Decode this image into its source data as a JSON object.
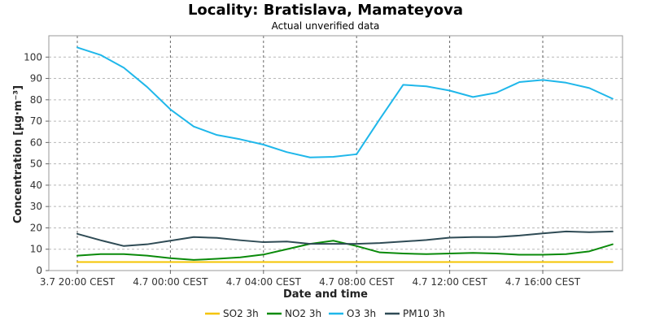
{
  "chart_data": {
    "type": "line",
    "title": "Locality: Bratislava, Mamateyova",
    "subtitle": "Actual unverified data",
    "xlabel": "Date and time",
    "ylabel": "Concentration [µg·m⁻³]",
    "ylim": [
      0,
      110
    ],
    "yticks": [
      0,
      10,
      20,
      30,
      40,
      50,
      60,
      70,
      80,
      90,
      100
    ],
    "xlim": [
      0,
      23.5
    ],
    "xticks": [
      {
        "x": 0,
        "label": "3.7 20:00 CEST"
      },
      {
        "x": 4,
        "label": "4.7 00:00 CEST"
      },
      {
        "x": 8,
        "label": "4.7 04:00 CEST"
      },
      {
        "x": 12,
        "label": "4.7 08:00 CEST"
      },
      {
        "x": 16,
        "label": "4.7 12:00 CEST"
      },
      {
        "x": 20,
        "label": "4.7 16:00 CEST"
      }
    ],
    "grid": true,
    "legend_position": "bottom",
    "series": [
      {
        "name": "SO2 3h",
        "color": "#f5c400",
        "x": [
          0,
          1,
          2,
          3,
          4,
          5,
          6,
          7,
          8,
          9,
          10,
          11,
          12,
          13,
          14,
          15,
          16,
          17,
          18,
          19,
          20,
          21,
          22,
          23
        ],
        "values": [
          4,
          4,
          4,
          4,
          4,
          4,
          4,
          4,
          4,
          4,
          4,
          4,
          4,
          4,
          4,
          4,
          4,
          4,
          4,
          4,
          4,
          4,
          4,
          4
        ]
      },
      {
        "name": "NO2 3h",
        "color": "#0a8a0a",
        "x": [
          0,
          1,
          2,
          3,
          4,
          5,
          6,
          7,
          8,
          9,
          10,
          11,
          12,
          13,
          14,
          15,
          16,
          17,
          18,
          19,
          20,
          21,
          22,
          23
        ],
        "values": [
          7,
          7.7,
          7.7,
          7,
          5.8,
          5,
          5.5,
          6.2,
          7.5,
          10,
          12.5,
          14,
          11.5,
          8.5,
          8,
          7.7,
          8,
          8.3,
          8,
          7.4,
          7.4,
          7.7,
          9,
          12.3
        ]
      },
      {
        "name": "O3 3h",
        "color": "#1fb7ea",
        "x": [
          0,
          1,
          2,
          3,
          4,
          5,
          6,
          7,
          8,
          9,
          10,
          11,
          12,
          13,
          14,
          15,
          16,
          17,
          18,
          19,
          20,
          21,
          22,
          23
        ],
        "values": [
          104.5,
          101,
          95,
          86,
          75.5,
          67.5,
          63.5,
          61.5,
          59,
          55.5,
          53,
          53.3,
          54.5,
          71,
          87,
          86.3,
          84.3,
          81.3,
          83.3,
          88.3,
          89.3,
          88,
          85.5,
          80.5
        ]
      },
      {
        "name": "PM10 3h",
        "color": "#2f4b55",
        "x": [
          0,
          1,
          2,
          3,
          4,
          5,
          6,
          7,
          8,
          9,
          10,
          11,
          12,
          13,
          14,
          15,
          16,
          17,
          18,
          19,
          20,
          21,
          22,
          23
        ],
        "values": [
          17.2,
          14.2,
          11.5,
          12.3,
          14,
          15.7,
          15.3,
          14.2,
          13.3,
          13.6,
          12.5,
          12.5,
          12.5,
          12.9,
          13.6,
          14.3,
          15.4,
          15.7,
          15.7,
          16.4,
          17.4,
          18.3,
          18,
          18.3
        ]
      }
    ]
  }
}
